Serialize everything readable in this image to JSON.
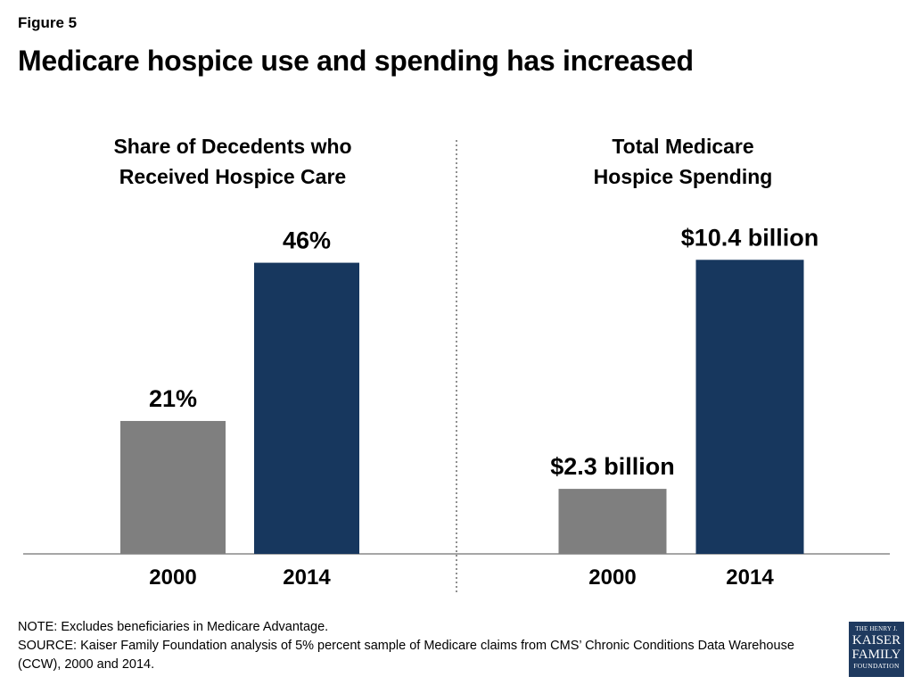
{
  "figure_label": "Figure 5",
  "title": "Medicare hospice use and spending has increased",
  "chart_data": [
    {
      "type": "bar",
      "title": [
        "Share of Decedents who",
        "Received Hospice Care"
      ],
      "categories": [
        "2000",
        "2014"
      ],
      "values": [
        21,
        46
      ],
      "value_labels": [
        "21%",
        "46%"
      ],
      "unit": "percent",
      "colors": [
        "#7f7f7f",
        "#17375e"
      ],
      "ylim": [
        0,
        52
      ]
    },
    {
      "type": "bar",
      "title": [
        "Total Medicare",
        "Hospice Spending"
      ],
      "categories": [
        "2000",
        "2014"
      ],
      "values": [
        2.3,
        10.4
      ],
      "value_labels": [
        "$2.3 billion",
        "$10.4 billion"
      ],
      "unit": "billion dollars",
      "colors": [
        "#7f7f7f",
        "#17375e"
      ],
      "ylim": [
        0,
        11.64
      ]
    }
  ],
  "notes": {
    "note": "NOTE: Excludes beneficiaries in Medicare Advantage.",
    "source": "SOURCE: Kaiser Family Foundation analysis of 5% percent sample of Medicare claims from CMS’ Chronic Conditions Data Warehouse (CCW), 2000 and 2014."
  },
  "logo": {
    "line1": "THE HENRY J.",
    "line2": "KAISER",
    "line3": "FAMILY",
    "line4": "FOUNDATION"
  }
}
